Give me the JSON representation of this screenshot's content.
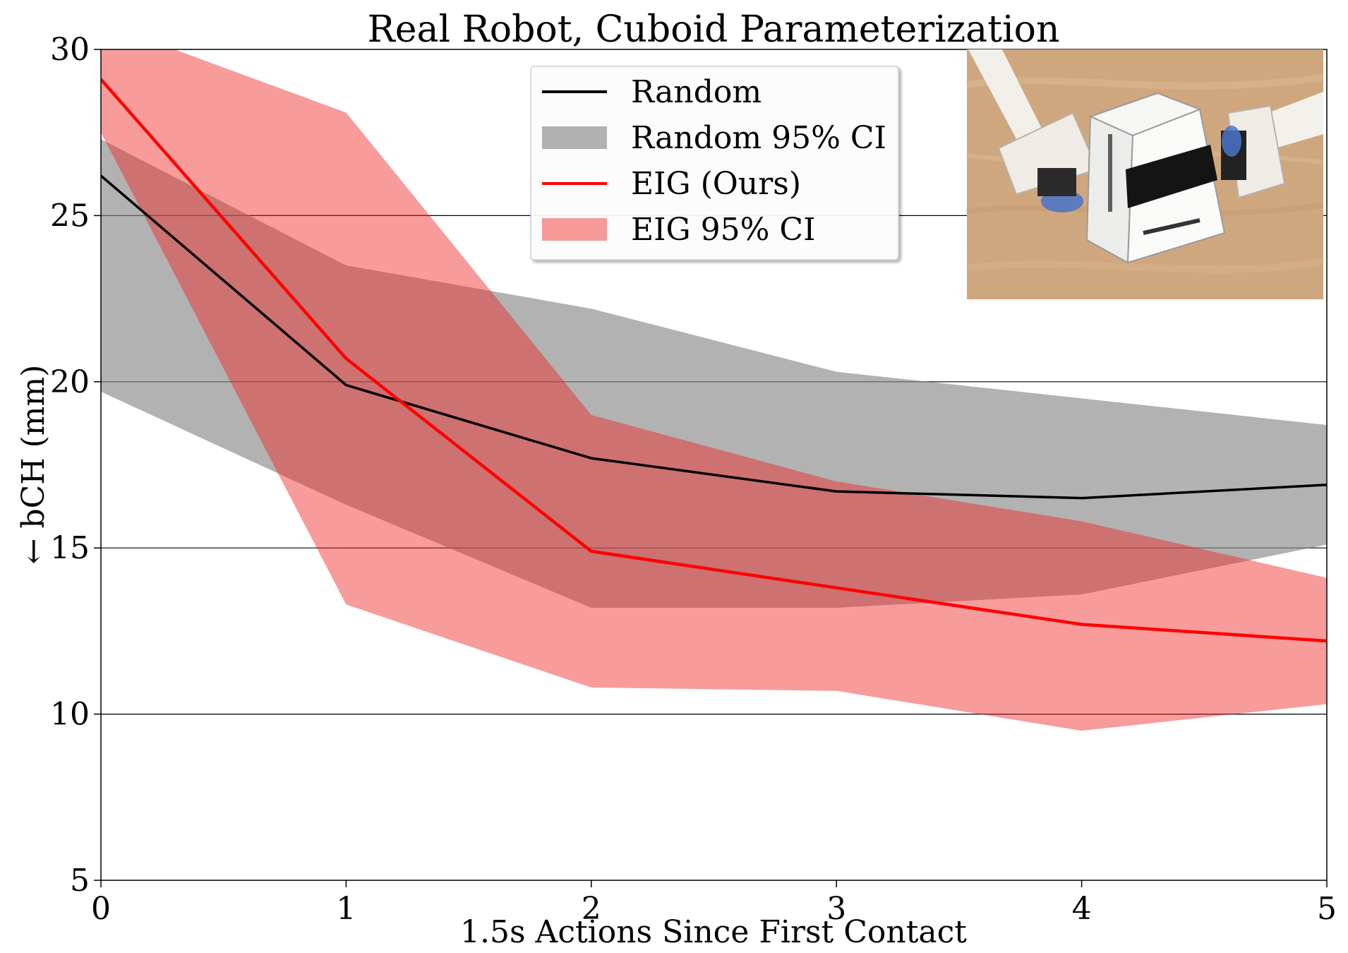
{
  "chart_data": {
    "type": "line",
    "title": "Real Robot, Cuboid Parameterization",
    "xlabel": "1.5s Actions Since First Contact",
    "ylabel": "← bCH (mm)",
    "x": [
      0,
      1,
      2,
      3,
      4,
      5
    ],
    "xlim": [
      0,
      5
    ],
    "ylim": [
      5,
      30
    ],
    "xticks": [
      "0",
      "1",
      "2",
      "3",
      "4",
      "5"
    ],
    "yticks": [
      "5",
      "10",
      "15",
      "20",
      "25",
      "30"
    ],
    "gridlines_y": [
      10,
      15,
      20,
      25
    ],
    "legend_position": "upper-center",
    "series": [
      {
        "name": "Random",
        "values": [
          26.2,
          19.9,
          17.7,
          16.7,
          16.5,
          16.9
        ],
        "color": "#000000"
      },
      {
        "name": "EIG (Ours)",
        "values": [
          29.1,
          20.7,
          14.9,
          13.8,
          12.7,
          12.2
        ],
        "color": "#ff0000"
      }
    ],
    "bands": [
      {
        "name": "Random 95% CI",
        "lower": [
          19.7,
          16.3,
          13.2,
          13.2,
          13.6,
          15.1
        ],
        "upper": [
          27.3,
          23.5,
          22.2,
          20.3,
          19.5,
          18.7
        ],
        "color": "#888888"
      },
      {
        "name": "EIG 95% CI",
        "lower": [
          27.5,
          13.3,
          10.8,
          10.7,
          9.5,
          10.3
        ],
        "upper": [
          30.0,
          28.1,
          19.0,
          17.0,
          15.8,
          14.1
        ],
        "upper_x": [
          0,
          0.3,
          1,
          2,
          3,
          4,
          5
        ],
        "upper_values": [
          30.0,
          30.0,
          28.1,
          19.0,
          17.0,
          15.8,
          14.1
        ],
        "color": "#ee2222"
      }
    ],
    "inset_image": "robot-photo"
  }
}
